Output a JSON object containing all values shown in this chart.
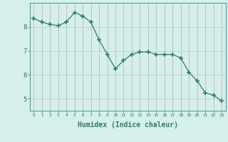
{
  "x": [
    0,
    1,
    2,
    3,
    4,
    5,
    6,
    7,
    8,
    9,
    10,
    11,
    12,
    13,
    14,
    15,
    16,
    17,
    18,
    19,
    20,
    21,
    22,
    23
  ],
  "y": [
    8.35,
    8.2,
    8.1,
    8.05,
    8.2,
    8.6,
    8.45,
    8.2,
    7.45,
    6.85,
    6.25,
    6.6,
    6.85,
    6.95,
    6.95,
    6.85,
    6.85,
    6.85,
    6.7,
    6.1,
    5.75,
    5.25,
    5.15,
    4.9
  ],
  "line_color": "#2e7d6e",
  "marker": "+",
  "marker_size": 4,
  "bg_color": "#d4efec",
  "grid_color": "#aacfcc",
  "axis_color": "#5a9e96",
  "tick_color": "#2e7d6e",
  "xlabel": "Humidex (Indice chaleur)",
  "xlabel_fontsize": 7,
  "ytick_labels": [
    "5",
    "6",
    "7",
    "8"
  ],
  "ytick_values": [
    5,
    6,
    7,
    8
  ],
  "xlim": [
    -0.5,
    23.5
  ],
  "ylim": [
    4.5,
    9.0
  ]
}
